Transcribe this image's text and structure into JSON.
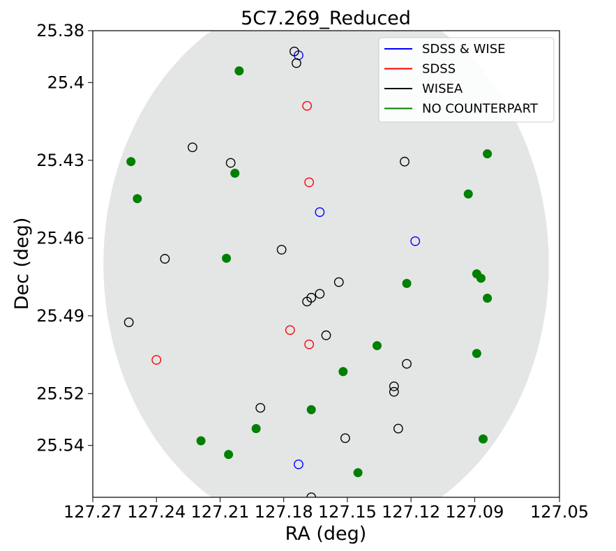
{
  "chart_data": {
    "type": "scatter",
    "title": "5C7.269_Reduced",
    "xlabel": "RA (deg)",
    "ylabel": "Dec (deg)",
    "xlim": [
      127.27,
      127.05
    ],
    "ylim": [
      25.56,
      25.38
    ],
    "x_ticks": [
      "127.27",
      "127.24",
      "127.21",
      "127.18",
      "127.15",
      "127.12",
      "127.09",
      "127.05"
    ],
    "y_ticks": [
      "25.38",
      "25.4",
      "25.43",
      "25.46",
      "25.49",
      "25.52",
      "25.54"
    ],
    "field": {
      "center_ra": 127.16,
      "center_dec": 25.47,
      "radius_deg": 0.105,
      "shape": "circle",
      "color": "#e4e6e6"
    },
    "legend": {
      "position": "top-right",
      "entries": [
        {
          "label": "SDSS & WISE",
          "color": "#0000ff"
        },
        {
          "label": "SDSS",
          "color": "#ff0000"
        },
        {
          "label": "WISEA",
          "color": "#000000"
        },
        {
          "label": "NO COUNTERPART",
          "color": "#008000"
        }
      ]
    },
    "series": [
      {
        "name": "SDSS & WISE",
        "color": "#0000ff",
        "marker": "open-circle",
        "points": [
          [
            127.173,
            25.3895
          ],
          [
            127.163,
            25.45
          ],
          [
            127.118,
            25.4612
          ],
          [
            127.173,
            25.5473
          ]
        ]
      },
      {
        "name": "SDSS",
        "color": "#ff0000",
        "marker": "open-circle",
        "points": [
          [
            127.169,
            25.409
          ],
          [
            127.168,
            25.4385
          ],
          [
            127.177,
            25.4955
          ],
          [
            127.168,
            25.501
          ],
          [
            127.24,
            25.507
          ]
        ]
      },
      {
        "name": "WISEA",
        "color": "#000000",
        "marker": "open-circle",
        "points": [
          [
            127.175,
            25.388
          ],
          [
            127.174,
            25.3925
          ],
          [
            127.223,
            25.425
          ],
          [
            127.205,
            25.431
          ],
          [
            127.123,
            25.4305
          ],
          [
            127.181,
            25.4645
          ],
          [
            127.236,
            25.468
          ],
          [
            127.154,
            25.477
          ],
          [
            127.163,
            25.4815
          ],
          [
            127.167,
            25.483
          ],
          [
            127.169,
            25.4845
          ],
          [
            127.253,
            25.4925
          ],
          [
            127.16,
            25.4975
          ],
          [
            127.122,
            25.5085
          ],
          [
            127.128,
            25.5172
          ],
          [
            127.128,
            25.5193
          ],
          [
            127.191,
            25.5255
          ],
          [
            127.126,
            25.5335
          ],
          [
            127.151,
            25.5372
          ],
          [
            127.167,
            25.56
          ]
        ]
      },
      {
        "name": "NO COUNTERPART",
        "color": "#008000",
        "marker": "filled-circle",
        "points": [
          [
            127.201,
            25.3955
          ],
          [
            127.084,
            25.4275
          ],
          [
            127.252,
            25.4305
          ],
          [
            127.203,
            25.435
          ],
          [
            127.093,
            25.443
          ],
          [
            127.249,
            25.4448
          ],
          [
            127.207,
            25.4678
          ],
          [
            127.122,
            25.4775
          ],
          [
            127.089,
            25.4738
          ],
          [
            127.087,
            25.4755
          ],
          [
            127.084,
            25.4832
          ],
          [
            127.136,
            25.5015
          ],
          [
            127.089,
            25.5045
          ],
          [
            127.152,
            25.5115
          ],
          [
            127.167,
            25.5262
          ],
          [
            127.193,
            25.5335
          ],
          [
            127.219,
            25.5382
          ],
          [
            127.206,
            25.5435
          ],
          [
            127.086,
            25.5375
          ],
          [
            127.145,
            25.5505
          ]
        ]
      }
    ]
  }
}
